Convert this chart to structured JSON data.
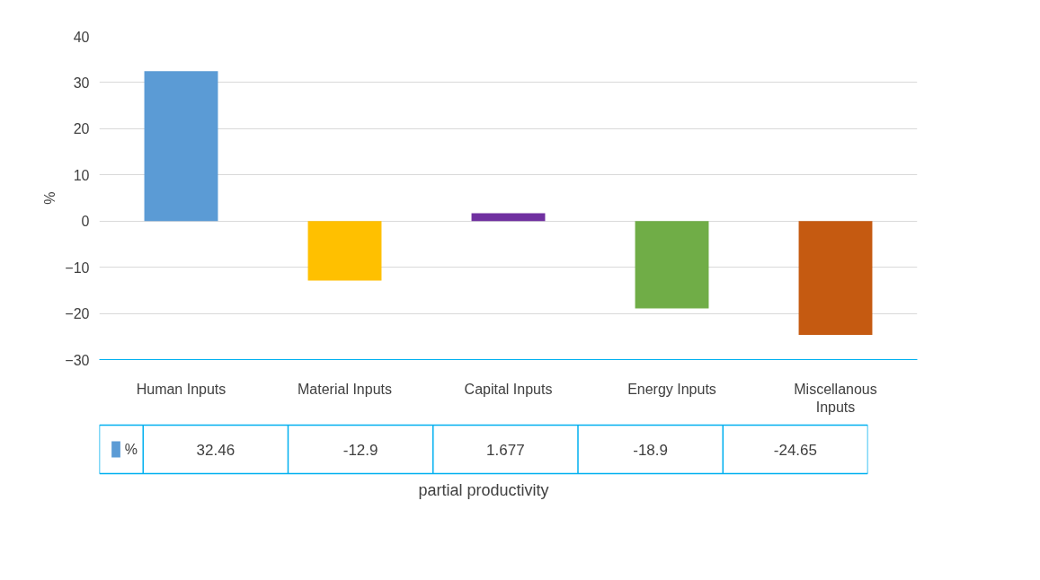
{
  "chart_data": {
    "type": "bar",
    "xlabel": "partial productivity",
    "ylabel": "%",
    "categories": [
      "Human Inputs",
      "Material Inputs",
      "Capital Inputs",
      "Energy Inputs",
      "Miscellanous Inputs"
    ],
    "series": [
      {
        "name": "%",
        "values": [
          32.46,
          -12.9,
          1.677,
          -18.9,
          -24.65
        ],
        "colors": [
          "#5b9bd5",
          "#ffc000",
          "#7030a0",
          "#70ad47",
          "#c55a11"
        ],
        "color": "#5b9bd5"
      }
    ],
    "value_labels": [
      "32.46",
      "-12.9",
      "1.677",
      "-18.9",
      "-24.65"
    ],
    "ylim": [
      -30,
      40
    ],
    "yticks": [
      -30,
      -20,
      -10,
      0,
      10,
      20,
      30,
      40
    ],
    "grid": "y",
    "legend": "bottom"
  }
}
